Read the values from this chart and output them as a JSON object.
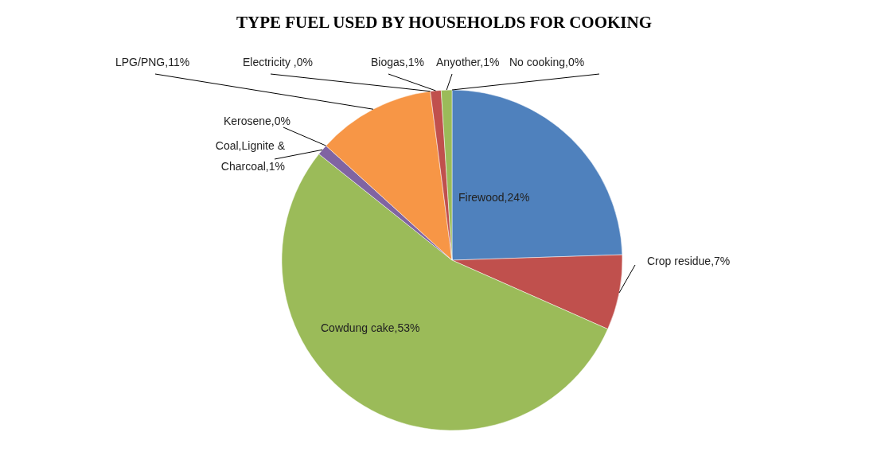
{
  "chart_data": {
    "type": "pie",
    "title": "TYPE FUEL USED BY HOUSEHOLDS FOR COOKING",
    "categories": [
      "Firewood",
      "Crop residue",
      "Cowdung cake",
      "Coal,Lignite & Charcoal",
      "Kerosene",
      "LPG/PNG",
      "Electricity ",
      "Biogas",
      "Anyother",
      "No cooking"
    ],
    "values": [
      24,
      7,
      53,
      1,
      0,
      11,
      0,
      1,
      1,
      0
    ],
    "value_labels": [
      ",24%",
      ",7%",
      ",53%",
      ",1%",
      ",0%",
      ",11%",
      ",0%",
      ",1%",
      ",1%",
      ",0%"
    ],
    "colors": [
      "#4f81bd",
      "#c0504d",
      "#9bbb59",
      "#8064a2",
      "#4bacc6",
      "#f79646",
      "#4f81bd",
      "#c0504d",
      "#9bbb59",
      "#8064a2"
    ]
  }
}
